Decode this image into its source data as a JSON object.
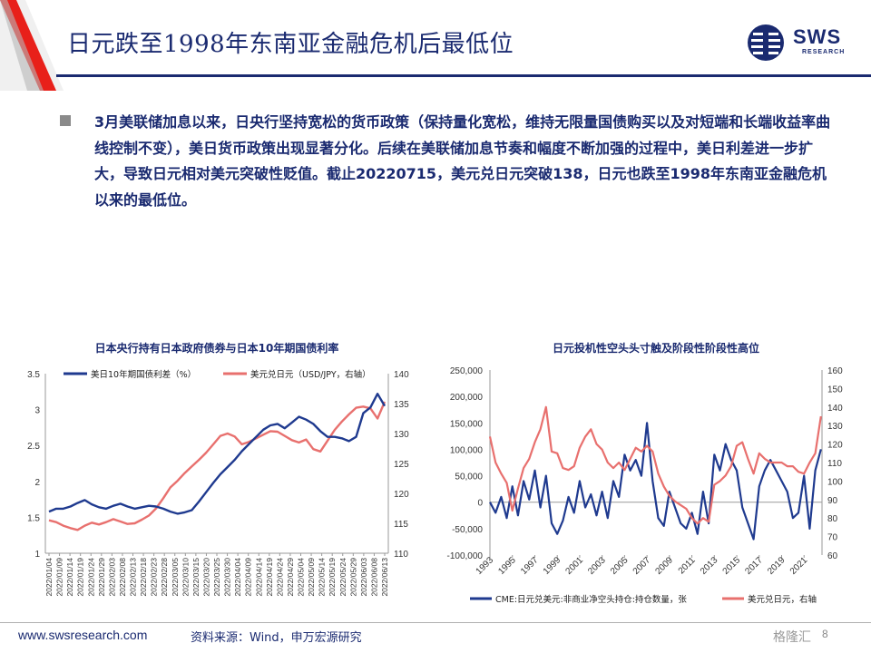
{
  "header": {
    "title": "日元跌至1998年东南亚金融危机后最低位",
    "logo_text": "SWS",
    "logo_sub": "RESEARCH"
  },
  "body": {
    "paragraph": "3月美联储加息以来，日央行坚持宽松的货币政策（保持量化宽松，维持无限量国债购买以及对短端和长端收益率曲线控制不变），美日货币政策出现显著分化。后续在美联储加息节奏和幅度不断加强的过程中，美日利差进一步扩大，导致日元相对美元突破性贬值。截止20220715，美元兑日元突破138，日元也跌至1998年东南亚金融危机以来的最低位。"
  },
  "footer": {
    "url": "www.swsresearch.com",
    "source": "资料来源：Wind，申万宏源研究",
    "page": "8",
    "watermark": "格隆汇"
  },
  "colors": {
    "navy": "#1a2a70",
    "series_blue": "#1f3a8f",
    "series_red": "#e8706e",
    "accent_red": "#e8201a"
  },
  "chart_data": [
    {
      "type": "line",
      "title": "日本央行持有日本政府债券与日本10年期国债利率",
      "x_tick_labels": [
        "2022/01/04",
        "2022/01/09",
        "2022/01/14",
        "2022/01/19",
        "2022/01/24",
        "2022/01/29",
        "2022/02/03",
        "2022/02/08",
        "2022/02/13",
        "2022/02/18",
        "2022/02/23",
        "2022/02/28",
        "2022/03/05",
        "2022/03/10",
        "2022/03/15",
        "2022/03/20",
        "2022/03/25",
        "2022/03/30",
        "2022/04/04",
        "2022/04/09",
        "2022/04/14",
        "2022/04/19",
        "2022/04/24",
        "2022/04/29",
        "2022/05/04",
        "2022/05/09",
        "2022/05/14",
        "2022/05/19",
        "2022/05/24",
        "2022/05/29",
        "2022/06/03",
        "2022/06/08",
        "2022/06/13"
      ],
      "ylim_left": [
        1,
        3.5
      ],
      "ylim_right": [
        110,
        140
      ],
      "yticks_left": [
        "1",
        "1.5",
        "2",
        "2.5",
        "3",
        "3.5"
      ],
      "yticks_right": [
        "110",
        "115",
        "120",
        "125",
        "130",
        "135",
        "140"
      ],
      "legend_position": "top",
      "series": [
        {
          "name": "美日10年期国债利差（%）",
          "axis": "left",
          "values": [
            1.58,
            1.62,
            1.62,
            1.65,
            1.7,
            1.74,
            1.68,
            1.64,
            1.62,
            1.66,
            1.69,
            1.65,
            1.62,
            1.64,
            1.66,
            1.65,
            1.62,
            1.58,
            1.55,
            1.57,
            1.6,
            1.72,
            1.85,
            1.98,
            2.1,
            2.2,
            2.3,
            2.42,
            2.52,
            2.62,
            2.72,
            2.78,
            2.8,
            2.74,
            2.82,
            2.9,
            2.86,
            2.8,
            2.7,
            2.62,
            2.62,
            2.6,
            2.56,
            2.62,
            2.95,
            3.03,
            3.22,
            3.05
          ]
        },
        {
          "name": "美元兑日元（USD/JPY，右轴）",
          "axis": "right",
          "values": [
            115.5,
            115.2,
            114.6,
            114.2,
            113.9,
            114.6,
            115.1,
            114.8,
            115.2,
            115.7,
            115.3,
            114.9,
            115.0,
            115.6,
            116.3,
            117.5,
            119.2,
            121.0,
            122.1,
            123.4,
            124.5,
            125.6,
            126.8,
            128.2,
            129.6,
            130.0,
            129.5,
            128.2,
            128.6,
            129.2,
            129.8,
            130.4,
            130.3,
            129.6,
            128.9,
            128.5,
            129.0,
            127.4,
            127.0,
            128.8,
            130.6,
            132.0,
            133.2,
            134.3,
            134.5,
            134.2,
            132.5,
            135.3
          ]
        }
      ]
    },
    {
      "type": "line",
      "title": "日元投机性空头头寸触及阶段性阶段性高位",
      "x_tick_labels": [
        "1993",
        "1995",
        "1997",
        "1999",
        "2001",
        "2003",
        "2005",
        "2007",
        "2009",
        "2011",
        "2013",
        "2015",
        "2017",
        "2019",
        "2021"
      ],
      "ylim_left": [
        -100000,
        250000
      ],
      "ylim_right": [
        60,
        160
      ],
      "yticks_left": [
        "-100,000",
        "-50,000",
        "0",
        "50,000",
        "100,000",
        "150,000",
        "200,000",
        "250,000"
      ],
      "yticks_right": [
        "60",
        "70",
        "80",
        "90",
        "100",
        "110",
        "120",
        "130",
        "140",
        "150",
        "160"
      ],
      "legend_position": "bottom",
      "series": [
        {
          "name": "CME:日元兑美元:非商业净空头持仓:持仓数量，张",
          "axis": "left",
          "x": [
            1993,
            1993.5,
            1994,
            1994.5,
            1995,
            1995.5,
            1996,
            1996.5,
            1997,
            1997.5,
            1998,
            1998.5,
            1999,
            1999.5,
            2000,
            2000.5,
            2001,
            2001.5,
            2002,
            2002.5,
            2003,
            2003.5,
            2004,
            2004.5,
            2005,
            2005.5,
            2006,
            2006.5,
            2007,
            2007.5,
            2008,
            2008.5,
            2009,
            2009.5,
            2010,
            2010.5,
            2011,
            2011.5,
            2012,
            2012.5,
            2013,
            2013.5,
            2014,
            2014.5,
            2015,
            2015.5,
            2016,
            2016.5,
            2017,
            2017.5,
            2018,
            2018.5,
            2019,
            2019.5,
            2020,
            2020.5,
            2021,
            2021.5,
            2022,
            2022.5
          ],
          "values": [
            0,
            -20000,
            10000,
            -30000,
            30000,
            -25000,
            40000,
            5000,
            60000,
            -10000,
            50000,
            -40000,
            -60000,
            -35000,
            10000,
            -20000,
            40000,
            -10000,
            15000,
            -25000,
            20000,
            -30000,
            40000,
            10000,
            90000,
            60000,
            80000,
            50000,
            150000,
            40000,
            -30000,
            -45000,
            20000,
            -10000,
            -40000,
            -50000,
            -20000,
            -60000,
            20000,
            -40000,
            90000,
            60000,
            110000,
            80000,
            60000,
            -10000,
            -40000,
            -70000,
            30000,
            60000,
            80000,
            60000,
            40000,
            20000,
            -30000,
            -20000,
            50000,
            -50000,
            60000,
            100000
          ]
        },
        {
          "name": "美元兑日元，右轴",
          "axis": "right",
          "x": [
            1993,
            1993.5,
            1994,
            1994.5,
            1995,
            1995.5,
            1996,
            1996.5,
            1997,
            1997.5,
            1998,
            1998.5,
            1999,
            1999.5,
            2000,
            2000.5,
            2001,
            2001.5,
            2002,
            2002.5,
            2003,
            2003.5,
            2004,
            2004.5,
            2005,
            2005.5,
            2006,
            2006.5,
            2007,
            2007.5,
            2008,
            2008.5,
            2009,
            2009.5,
            2010,
            2010.5,
            2011,
            2011.5,
            2012,
            2012.5,
            2013,
            2013.5,
            2014,
            2014.5,
            2015,
            2015.5,
            2016,
            2016.5,
            2017,
            2017.5,
            2018,
            2018.5,
            2019,
            2019.5,
            2020,
            2020.5,
            2021,
            2021.5,
            2022,
            2022.5
          ],
          "values": [
            124,
            110,
            104,
            99,
            84,
            96,
            107,
            112,
            121,
            128,
            140,
            116,
            115,
            107,
            106,
            108,
            118,
            124,
            128,
            120,
            117,
            110,
            107,
            110,
            106,
            112,
            118,
            116,
            119,
            116,
            104,
            97,
            92,
            89,
            87,
            85,
            80,
            77,
            80,
            78,
            98,
            100,
            103,
            108,
            119,
            121,
            112,
            104,
            115,
            112,
            110,
            110,
            110,
            108,
            108,
            105,
            104,
            110,
            115,
            135
          ]
        }
      ]
    }
  ]
}
